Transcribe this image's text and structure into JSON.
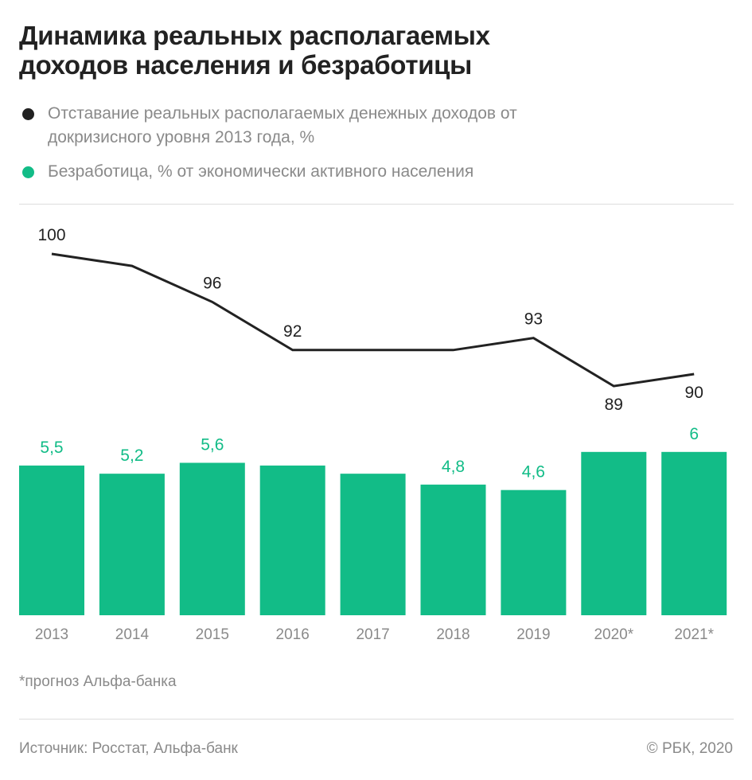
{
  "title": "Динамика реальных располагаемых доходов населения и безработицы",
  "legend": [
    {
      "label": "Отставание реальных располагаемых денежных доходов от докризисного уровня 2013 года, %",
      "color": "#222222"
    },
    {
      "label": "Безработица, % от экономически активного населения",
      "color": "#12bc87"
    }
  ],
  "footnote": "*прогноз Альфа-банка",
  "source": "Источник: Росстат, Альфа-банк",
  "copyright": "© РБК, 2020",
  "chart_data": {
    "type": "bar+line",
    "categories": [
      "2013",
      "2014",
      "2015",
      "2016",
      "2017",
      "2018",
      "2019",
      "2020*",
      "2021*"
    ],
    "series": [
      {
        "name": "Отставание реальных располагаемых денежных доходов от докризисного уровня 2013 года, %",
        "type": "line",
        "color": "#222222",
        "values": [
          100,
          99,
          96,
          92,
          92,
          92,
          93,
          89,
          90
        ],
        "labels": [
          "100",
          "",
          "96",
          "92",
          "",
          "",
          "93",
          "89",
          "90"
        ]
      },
      {
        "name": "Безработица, % от экономически активного населения",
        "type": "bar",
        "color": "#12bc87",
        "values": [
          5.5,
          5.2,
          5.6,
          5.5,
          5.2,
          4.8,
          4.6,
          6.0,
          6.0
        ],
        "labels": [
          "5,5",
          "5,2",
          "5,6",
          "",
          "",
          "4,8",
          "4,6",
          "",
          "6"
        ]
      }
    ],
    "grid": false
  }
}
